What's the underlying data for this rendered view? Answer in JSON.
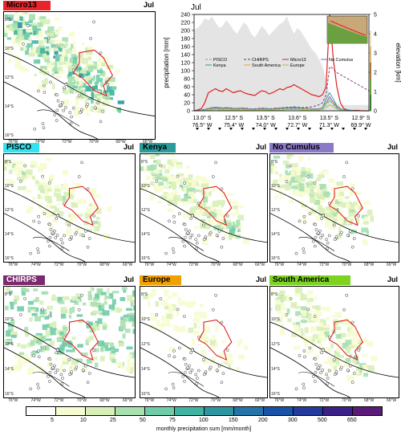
{
  "panels": [
    {
      "id": "micro13",
      "label": "Micro13",
      "month": "Jul",
      "tag_color": "#e8232a",
      "tag_text": "#000000",
      "intensity": 1.3
    },
    {
      "id": "pisco",
      "label": "PISCO",
      "month": "Jul",
      "tag_color": "#33e4f0",
      "tag_text": "#000000",
      "intensity": 0.55
    },
    {
      "id": "kenya",
      "label": "Kenya",
      "month": "Jul",
      "tag_color": "#2b9c9c",
      "tag_text": "#000000",
      "intensity": 0.85
    },
    {
      "id": "nocumulus",
      "label": "No Cumulus",
      "month": "Jul",
      "tag_color": "#8b78c8",
      "tag_text": "#000000",
      "intensity": 0.8
    },
    {
      "id": "chirps",
      "label": "CHIRPS",
      "month": "Jul",
      "tag_color": "#7b2a6e",
      "tag_text": "#ffffff",
      "intensity": 1.0
    },
    {
      "id": "europe",
      "label": "Europe",
      "month": "Jul",
      "tag_color": "#f0a000",
      "tag_text": "#000000",
      "intensity": 0.35
    },
    {
      "id": "southamerica",
      "label": "South America",
      "month": "Jul",
      "tag_color": "#7ed321",
      "tag_text": "#000000",
      "intensity": 0.75
    }
  ],
  "lat_ticks": [
    "8°S",
    "10°S",
    "12°S",
    "14°S",
    "16°S"
  ],
  "lon_ticks": [
    "76°W",
    "74°W",
    "72°W",
    "70°W",
    "68°W",
    "66°W"
  ],
  "chart_data": {
    "type": "line",
    "title": "Jul",
    "ylabel": "precipitation [mm]",
    "y2label": "elevation [km]",
    "ylim": [
      0,
      240
    ],
    "y2lim": [
      0,
      5
    ],
    "yticks": [
      0,
      20,
      40,
      60,
      80,
      100,
      120,
      140,
      160,
      180,
      200,
      220,
      240
    ],
    "y2ticks": [
      0,
      1,
      2,
      3,
      4,
      5
    ],
    "x_ticks": [
      {
        "lat": "13.0° S",
        "lon": "76.5° W"
      },
      {
        "lat": "12.5° S",
        "lon": "75.4° W"
      },
      {
        "lat": "13.5° S",
        "lon": "74.0° W"
      },
      {
        "lat": "13.6° S",
        "lon": "72.7° W"
      },
      {
        "lat": "13.5° S",
        "lon": "71.3° W"
      },
      {
        "lat": "12.9° S",
        "lon": "69.9° W"
      }
    ],
    "legend": [
      {
        "name": "PISCO",
        "color": "#33c8e8",
        "dash": "3,2"
      },
      {
        "name": "Kenya",
        "color": "#2b9c9c",
        "dash": ""
      },
      {
        "name": "CHIRPS",
        "color": "#7b2a6e",
        "dash": "3,2"
      },
      {
        "name": "South America",
        "color": "#e8a020",
        "dash": ""
      },
      {
        "name": "Micro13",
        "color": "#d22",
        "dash": ""
      },
      {
        "name": "Europe",
        "color": "#a8c040",
        "dash": ""
      },
      {
        "name": "No Cumulus",
        "color": "#6a6ad0",
        "dash": ""
      }
    ],
    "elevation": [
      4.2,
      4.3,
      4.5,
      4.8,
      4.7,
      4.9,
      4.6,
      4.3,
      4.4,
      4.7,
      4.5,
      4.2,
      4.0,
      4.3,
      4.6,
      4.4,
      4.0,
      3.8,
      4.1,
      4.4,
      4.2,
      3.9,
      4.1,
      4.3,
      4.5,
      4.6,
      4.9,
      4.4,
      4.0,
      4.3,
      4.1,
      3.8,
      3.5,
      3.2,
      3.0,
      2.7,
      2.3,
      1.6,
      0.8,
      0.5,
      0.4,
      0.3,
      0.3,
      0.3,
      0.3,
      0.3,
      0.3,
      0.3,
      0.3,
      0.3
    ],
    "series": [
      {
        "name": "Micro13",
        "values": [
          0,
          2,
          5,
          20,
          45,
          50,
          55,
          50,
          48,
          55,
          50,
          45,
          48,
          50,
          45,
          42,
          40,
          38,
          45,
          50,
          48,
          42,
          45,
          50,
          55,
          52,
          58,
          60,
          65,
          60,
          55,
          50,
          45,
          40,
          38,
          35,
          40,
          60,
          240,
          130,
          60,
          20,
          5,
          2,
          1,
          1,
          1,
          0,
          0,
          0
        ]
      },
      {
        "name": "CHIRPS",
        "values": [
          0,
          1,
          2,
          4,
          6,
          7,
          8,
          7,
          6,
          7,
          8,
          6,
          5,
          6,
          7,
          6,
          5,
          5,
          6,
          7,
          6,
          5,
          6,
          7,
          7,
          8,
          9,
          9,
          10,
          9,
          8,
          8,
          9,
          10,
          12,
          15,
          20,
          40,
          110,
          105,
          95,
          90,
          85,
          80,
          75,
          70,
          65,
          60,
          55,
          50
        ]
      },
      {
        "name": "Kenya",
        "values": [
          0,
          0,
          1,
          3,
          6,
          8,
          9,
          8,
          7,
          8,
          7,
          6,
          6,
          7,
          6,
          5,
          5,
          4,
          5,
          6,
          6,
          5,
          5,
          6,
          7,
          7,
          8,
          8,
          9,
          8,
          7,
          6,
          6,
          5,
          5,
          5,
          8,
          30,
          45,
          30,
          12,
          5,
          2,
          1,
          1,
          0,
          0,
          0,
          0,
          0
        ]
      },
      {
        "name": "No Cumulus",
        "values": [
          0,
          0,
          1,
          3,
          5,
          7,
          8,
          7,
          6,
          7,
          6,
          6,
          5,
          6,
          6,
          5,
          4,
          4,
          5,
          5,
          5,
          4,
          5,
          5,
          6,
          6,
          7,
          7,
          8,
          7,
          6,
          6,
          5,
          5,
          5,
          5,
          7,
          20,
          35,
          22,
          10,
          4,
          2,
          1,
          0,
          0,
          0,
          0,
          0,
          0
        ]
      },
      {
        "name": "South America",
        "values": [
          0,
          0,
          1,
          2,
          4,
          5,
          6,
          5,
          5,
          5,
          5,
          4,
          4,
          5,
          4,
          4,
          3,
          3,
          4,
          4,
          4,
          3,
          4,
          4,
          5,
          5,
          6,
          6,
          6,
          6,
          5,
          5,
          5,
          4,
          4,
          4,
          6,
          18,
          28,
          18,
          8,
          3,
          1,
          0,
          0,
          0,
          0,
          0,
          0,
          0
        ]
      },
      {
        "name": "Europe",
        "values": [
          0,
          0,
          0,
          1,
          2,
          2,
          3,
          2,
          2,
          2,
          2,
          2,
          2,
          2,
          2,
          2,
          1,
          1,
          2,
          2,
          2,
          1,
          2,
          2,
          2,
          2,
          3,
          3,
          3,
          3,
          2,
          2,
          2,
          2,
          2,
          2,
          3,
          8,
          15,
          10,
          4,
          2,
          1,
          0,
          0,
          0,
          0,
          0,
          0,
          0
        ]
      },
      {
        "name": "PISCO",
        "values": [
          0,
          0,
          1,
          2,
          3,
          4,
          5,
          4,
          4,
          4,
          4,
          3,
          3,
          4,
          3,
          3,
          3,
          3,
          3,
          4,
          3,
          3,
          3,
          4,
          4,
          4,
          5,
          5,
          5,
          5,
          4,
          4,
          4,
          4,
          4,
          4,
          5,
          12,
          25,
          15,
          6,
          3,
          1,
          0,
          0,
          0,
          0,
          0,
          0,
          0
        ]
      }
    ]
  },
  "colorbar": {
    "title": "monthly precipitation sum [mm/month]",
    "labels": [
      "5",
      "10",
      "25",
      "50",
      "75",
      "100",
      "150",
      "200",
      "300",
      "500",
      "650"
    ],
    "colors": [
      "#ffffff",
      "#f7fcd0",
      "#d8f0b8",
      "#a8e0b0",
      "#70cca8",
      "#40b4a0",
      "#2e96a0",
      "#2474a8",
      "#1a52a8",
      "#243a9c",
      "#3a2288",
      "#5a1a78"
    ]
  }
}
